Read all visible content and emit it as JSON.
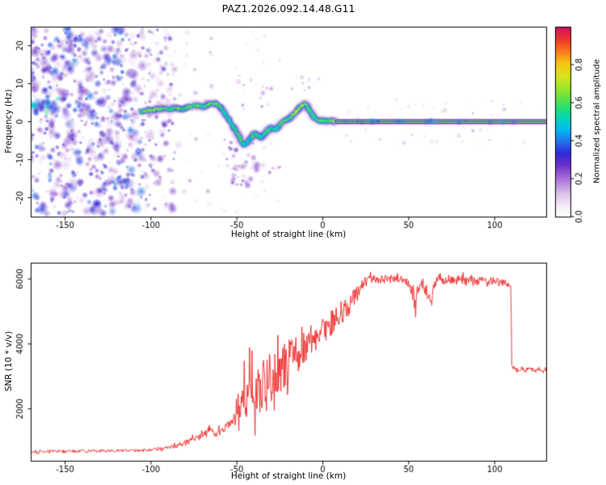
{
  "title": "PAZ1.2026.092.14.48.G11",
  "chart_data": [
    {
      "type": "heatmap",
      "panel": "spectrogram",
      "xlabel": "Height of straight line (km)",
      "ylabel": "Frequency (Hz)",
      "xlim": [
        -170,
        130
      ],
      "ylim": [
        -25,
        25
      ],
      "xticks": [
        -150,
        -100,
        -50,
        0,
        50,
        100
      ],
      "yticks": [
        -20,
        -10,
        0,
        10,
        20
      ],
      "grid": false,
      "colorbar": {
        "label": "Normalized spectral amplitude",
        "ticks": [
          0,
          0.2,
          0.4,
          0.6,
          0.8
        ],
        "range": [
          0,
          1
        ],
        "stops": [
          [
            0.0,
            "#ffffff"
          ],
          [
            0.05,
            "#f6eef9"
          ],
          [
            0.12,
            "#dcc0ea"
          ],
          [
            0.2,
            "#a86ed6"
          ],
          [
            0.27,
            "#6b30c9"
          ],
          [
            0.33,
            "#3327d8"
          ],
          [
            0.4,
            "#2277ee"
          ],
          [
            0.46,
            "#00bbee"
          ],
          [
            0.52,
            "#00d9b5"
          ],
          [
            0.58,
            "#2fdf66"
          ],
          [
            0.66,
            "#8ae42f"
          ],
          [
            0.74,
            "#d8e520"
          ],
          [
            0.81,
            "#f7c311"
          ],
          [
            0.87,
            "#f97b1d"
          ],
          [
            0.93,
            "#f03a28"
          ],
          [
            1.0,
            "#cc1166"
          ]
        ]
      },
      "ridge": [
        [
          -106,
          2.5,
          0.6
        ],
        [
          -102,
          3,
          0.62
        ],
        [
          -98,
          3.2,
          0.72
        ],
        [
          -94,
          3.5,
          0.64
        ],
        [
          -90,
          3.2,
          0.6
        ],
        [
          -86,
          3.6,
          0.62
        ],
        [
          -82,
          3.4,
          0.58
        ],
        [
          -78,
          3.8,
          0.62
        ],
        [
          -74,
          4.2,
          0.6
        ],
        [
          -70,
          4,
          0.58
        ],
        [
          -66,
          4.6,
          0.62
        ],
        [
          -62,
          4.8,
          0.6
        ],
        [
          -59,
          3.5,
          0.55
        ],
        [
          -56,
          1.5,
          0.52
        ],
        [
          -53,
          -0.8,
          0.55
        ],
        [
          -50,
          -3,
          0.6
        ],
        [
          -48,
          -4.8,
          0.58
        ],
        [
          -46,
          -6.2,
          0.55
        ],
        [
          -44,
          -5.6,
          0.52
        ],
        [
          -42,
          -4.2,
          0.56
        ],
        [
          -40,
          -3.2,
          0.6
        ],
        [
          -38,
          -3.6,
          0.55
        ],
        [
          -36,
          -4.2,
          0.52
        ],
        [
          -34,
          -3.4,
          0.56
        ],
        [
          -32,
          -2.4,
          0.6
        ],
        [
          -30,
          -1.8,
          0.56
        ],
        [
          -28,
          -2.2,
          0.52
        ],
        [
          -26,
          -1.2,
          0.56
        ],
        [
          -24,
          -0.4,
          0.6
        ],
        [
          -22,
          0.2,
          0.62
        ],
        [
          -20,
          0.8,
          0.62
        ],
        [
          -18,
          1.4,
          0.66
        ],
        [
          -16,
          2.4,
          0.7
        ],
        [
          -14,
          3.4,
          0.72
        ],
        [
          -12,
          4.4,
          0.74
        ],
        [
          -10,
          4.6,
          0.7
        ],
        [
          -8,
          3.2,
          0.62
        ],
        [
          -6,
          1.6,
          0.58
        ],
        [
          -4,
          0.6,
          0.6
        ],
        [
          -2,
          0.1,
          0.62
        ],
        [
          0,
          0.4,
          0.58
        ],
        [
          2,
          0.1,
          0.62
        ],
        [
          4,
          0.4,
          0.64
        ],
        [
          6,
          0.1,
          0.68
        ],
        [
          8,
          0,
          0.8
        ]
      ],
      "flat_line": {
        "x_range": [
          8,
          130
        ],
        "freq": 0,
        "amplitude": 0.95
      },
      "speckle_regions": [
        {
          "x_range": [
            -172,
            -104
          ],
          "f_range": [
            -24.5,
            24.5
          ],
          "count": 680,
          "amp_range": [
            0.06,
            0.4
          ],
          "r_range": [
            1.8,
            5.5
          ]
        },
        {
          "x_range": [
            -104,
            -86
          ],
          "f_range": [
            -24.5,
            24.5
          ],
          "count": 120,
          "amp_range": [
            0.05,
            0.3
          ],
          "r_range": [
            1.8,
            4.5
          ]
        },
        {
          "x_range": [
            -86,
            -60
          ],
          "f_range": [
            -24,
            24
          ],
          "count": 30,
          "amp_range": [
            0.05,
            0.2
          ],
          "r_range": [
            1.5,
            4
          ]
        },
        {
          "x_range": [
            -58,
            -24
          ],
          "f_range": [
            -17,
            -4
          ],
          "count": 55,
          "amp_range": [
            0.06,
            0.3
          ],
          "r_range": [
            1.8,
            4.5
          ]
        },
        {
          "x_range": [
            -50,
            -30
          ],
          "f_range": [
            3,
            11
          ],
          "count": 14,
          "amp_range": [
            0.05,
            0.22
          ],
          "r_range": [
            1.5,
            3.5
          ]
        },
        {
          "x_range": [
            -20,
            -2
          ],
          "f_range": [
            6,
            12
          ],
          "count": 8,
          "amp_range": [
            0.05,
            0.18
          ],
          "r_range": [
            1.5,
            3
          ]
        },
        {
          "x_range": [
            -60,
            -20
          ],
          "f_range": [
            10,
            24
          ],
          "count": 10,
          "amp_range": [
            0.04,
            0.15
          ],
          "r_range": [
            1.5,
            3
          ]
        },
        {
          "x_range": [
            -60,
            -20
          ],
          "f_range": [
            -24,
            -18
          ],
          "count": 8,
          "amp_range": [
            0.04,
            0.15
          ],
          "r_range": [
            1.5,
            3
          ]
        },
        {
          "x_range": [
            -172,
            -150
          ],
          "f_range": [
            2,
            7
          ],
          "count": 22,
          "amp_range": [
            0.3,
            0.58
          ],
          "r_range": [
            2.5,
            5.5
          ]
        },
        {
          "x_range": [
            12,
            130
          ],
          "f_range": [
            -6,
            6
          ],
          "count": 55,
          "amp_range": [
            0.04,
            0.16
          ],
          "r_range": [
            1.2,
            2.8
          ]
        }
      ]
    },
    {
      "type": "line",
      "panel": "snr",
      "xlabel": "Height of straight line (km)",
      "ylabel": "SNR (10 * v/v)",
      "xlim": [
        -170,
        130
      ],
      "ylim": [
        400,
        6500
      ],
      "xticks": [
        -150,
        -100,
        -50,
        0,
        50,
        100
      ],
      "yticks": [
        2000,
        4000,
        6000
      ],
      "grid": false,
      "series": [
        {
          "name": "SNR",
          "color": "#ee2222",
          "keypoints": [
            [
              -170,
              680
            ],
            [
              -160,
              690
            ],
            [
              -150,
              685
            ],
            [
              -140,
              700
            ],
            [
              -130,
              695
            ],
            [
              -120,
              705
            ],
            [
              -110,
              715
            ],
            [
              -100,
              730
            ],
            [
              -92,
              780
            ],
            [
              -86,
              850
            ],
            [
              -80,
              950
            ],
            [
              -76,
              1050
            ],
            [
              -72,
              1150
            ],
            [
              -69,
              1300
            ],
            [
              -66,
              1380
            ],
            [
              -63,
              1280
            ],
            [
              -60,
              1250
            ],
            [
              -57,
              1350
            ],
            [
              -54,
              1480
            ],
            [
              -51,
              1650
            ],
            [
              -48,
              1950
            ],
            [
              -45,
              2300
            ],
            [
              -42,
              2550
            ],
            [
              -39,
              2650
            ],
            [
              -36,
              2750
            ],
            [
              -33,
              2850
            ],
            [
              -30,
              2950
            ],
            [
              -27,
              3100
            ],
            [
              -24,
              3250
            ],
            [
              -21,
              3400
            ],
            [
              -18,
              3550
            ],
            [
              -15,
              3700
            ],
            [
              -12,
              3850
            ],
            [
              -9,
              4000
            ],
            [
              -6,
              4150
            ],
            [
              -3,
              4300
            ],
            [
              0,
              4400
            ],
            [
              3,
              4550
            ],
            [
              6,
              4700
            ],
            [
              9,
              4850
            ],
            [
              12,
              5000
            ],
            [
              15,
              5150
            ],
            [
              18,
              5400
            ],
            [
              21,
              5650
            ],
            [
              24,
              5900
            ],
            [
              27,
              6000
            ],
            [
              30,
              6020
            ],
            [
              34,
              5960
            ],
            [
              38,
              6010
            ],
            [
              42,
              5970
            ],
            [
              46,
              6000
            ],
            [
              50,
              5870
            ],
            [
              53,
              5400
            ],
            [
              54,
              5000
            ],
            [
              55,
              5600
            ],
            [
              58,
              5850
            ],
            [
              61,
              5600
            ],
            [
              63,
              5100
            ],
            [
              65,
              5800
            ],
            [
              68,
              6050
            ],
            [
              71,
              5950
            ],
            [
              74,
              6000
            ],
            [
              77,
              5950
            ],
            [
              80,
              6000
            ],
            [
              83,
              5930
            ],
            [
              86,
              5970
            ],
            [
              89,
              5890
            ],
            [
              92,
              5950
            ],
            [
              95,
              5900
            ],
            [
              98,
              5940
            ],
            [
              101,
              5890
            ],
            [
              104,
              5920
            ],
            [
              106,
              5880
            ],
            [
              108,
              5840
            ],
            [
              109,
              5780
            ],
            [
              109.5,
              5600
            ],
            [
              110,
              3300
            ],
            [
              112,
              3250
            ],
            [
              114,
              3180
            ],
            [
              116,
              3260
            ],
            [
              118,
              3170
            ],
            [
              120,
              3280
            ],
            [
              122,
              3210
            ],
            [
              124,
              3160
            ],
            [
              126,
              3240
            ],
            [
              128,
              3120
            ],
            [
              130,
              3200
            ]
          ],
          "noise_envelope": [
            [
              -170,
              45
            ],
            [
              -110,
              45
            ],
            [
              -95,
              55
            ],
            [
              -85,
              70
            ],
            [
              -75,
              100
            ],
            [
              -68,
              130
            ],
            [
              -60,
              130
            ],
            [
              -54,
              200
            ],
            [
              -50,
              350
            ],
            [
              -47,
              650
            ],
            [
              -44,
              850
            ],
            [
              -40,
              900
            ],
            [
              -36,
              850
            ],
            [
              -32,
              800
            ],
            [
              -28,
              750
            ],
            [
              -24,
              700
            ],
            [
              -20,
              650
            ],
            [
              -16,
              600
            ],
            [
              -12,
              550
            ],
            [
              -8,
              500
            ],
            [
              -4,
              450
            ],
            [
              0,
              420
            ],
            [
              4,
              400
            ],
            [
              8,
              380
            ],
            [
              12,
              350
            ],
            [
              16,
              300
            ],
            [
              20,
              250
            ],
            [
              24,
              180
            ],
            [
              28,
              130
            ],
            [
              50,
              130
            ],
            [
              52,
              200
            ],
            [
              56,
              220
            ],
            [
              60,
              200
            ],
            [
              64,
              250
            ],
            [
              66,
              150
            ],
            [
              100,
              140
            ],
            [
              105,
              120
            ],
            [
              108,
              90
            ],
            [
              110,
              60
            ],
            [
              130,
              55
            ]
          ]
        }
      ]
    }
  ]
}
